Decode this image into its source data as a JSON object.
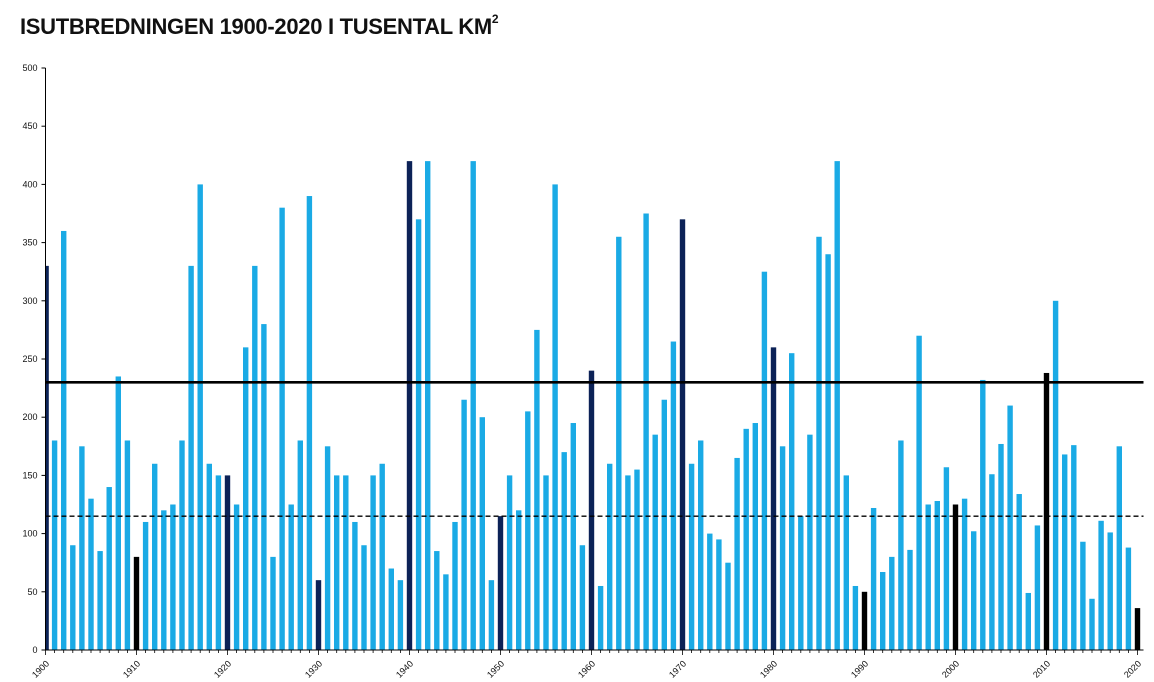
{
  "title_text": "ISUTBREDNINGEN 1900-2020 I TUSENTAL KM",
  "title_superscript": "2",
  "colors": {
    "bar": "#1AAAE5",
    "decade_bar": "#0C2257",
    "recent_decade_bar": "#000000",
    "reference_line": "#000000"
  },
  "chart_data": {
    "type": "bar",
    "title": "ISUTBREDNINGEN 1900-2020 I TUSENTAL KM²",
    "xlabel": "",
    "ylabel": "",
    "x_start": 1900,
    "x_end": 2020,
    "ylim": [
      0,
      500
    ],
    "yticks": [
      0,
      50,
      100,
      150,
      200,
      250,
      300,
      350,
      400,
      450,
      500
    ],
    "xtick_labels": [
      "1900",
      "1910",
      "1920",
      "1930",
      "1940",
      "1950",
      "1960",
      "1970",
      "1980",
      "1990",
      "2000",
      "2010",
      "2020"
    ],
    "grid": false,
    "legend": "none",
    "values": [
      330,
      180,
      360,
      90,
      175,
      130,
      85,
      140,
      235,
      180,
      80,
      110,
      160,
      120,
      125,
      180,
      330,
      400,
      160,
      150,
      150,
      125,
      260,
      330,
      280,
      80,
      380,
      125,
      180,
      390,
      60,
      175,
      150,
      150,
      110,
      90,
      150,
      160,
      70,
      60,
      420,
      370,
      420,
      85,
      65,
      110,
      215,
      420,
      200,
      60,
      115,
      150,
      120,
      205,
      275,
      150,
      400,
      170,
      195,
      90,
      240,
      55,
      160,
      355,
      150,
      155,
      375,
      185,
      215,
      265,
      370,
      160,
      180,
      100,
      95,
      75,
      165,
      190,
      195,
      325,
      260,
      175,
      255,
      115,
      185,
      355,
      340,
      420,
      150,
      55,
      50,
      122,
      67,
      80,
      180,
      86,
      270,
      125,
      128,
      157,
      125,
      130,
      102,
      232,
      151,
      177,
      210,
      134,
      49,
      107,
      238,
      300,
      168,
      176,
      93,
      44,
      111,
      101,
      175,
      88,
      36
    ],
    "reference_lines": [
      {
        "value": 230,
        "style": "solid"
      },
      {
        "value": 115,
        "style": "dashed"
      }
    ]
  }
}
